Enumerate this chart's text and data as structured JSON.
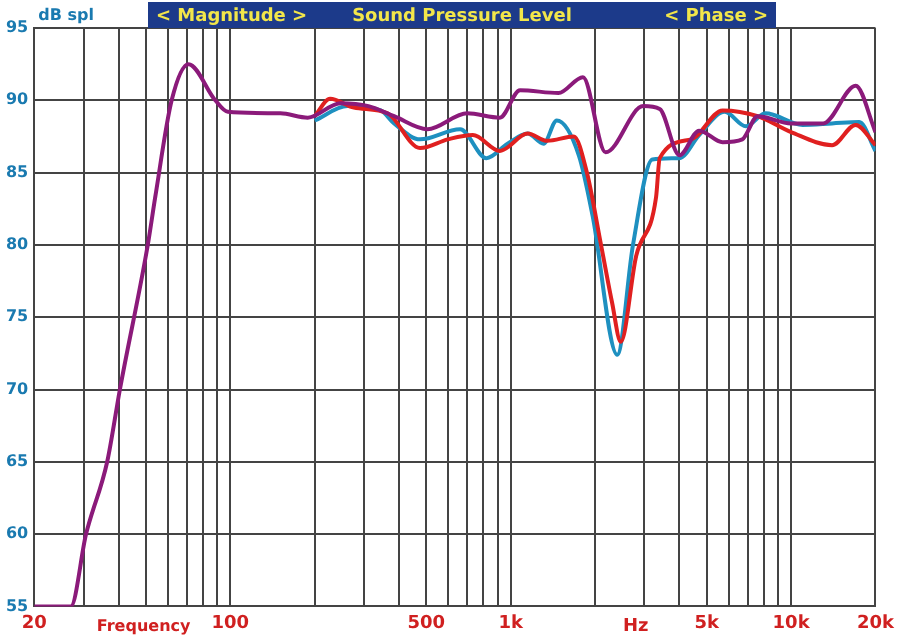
{
  "chart_data": {
    "type": "line",
    "title": "Sound Pressure Level",
    "ylabel": "dB spl",
    "xlabel": "Frequency",
    "annotations": [
      "< Magnitude >",
      "< Phase >",
      "Hz"
    ],
    "log": "x",
    "xlim": [
      20,
      20000
    ],
    "ylim": [
      55,
      95
    ],
    "xticks": [
      20,
      {
        "value": 30,
        "label": null
      },
      {
        "value": 40,
        "label": null
      },
      {
        "value": 50,
        "label": null
      },
      {
        "value": 60,
        "label": null
      },
      {
        "value": 70,
        "label": null
      },
      {
        "value": 80,
        "label": null
      },
      {
        "value": 90,
        "label": null
      },
      100,
      {
        "value": 200,
        "label": null
      },
      {
        "value": 300,
        "label": null
      },
      {
        "value": 400,
        "label": null
      },
      500,
      {
        "value": 600,
        "label": null
      },
      {
        "value": 700,
        "label": null
      },
      {
        "value": 800,
        "label": null
      },
      {
        "value": 900,
        "label": null
      },
      {
        "value": 1000,
        "label": "1k"
      },
      {
        "value": 2000,
        "label": null
      },
      {
        "value": 3000,
        "label": null
      },
      {
        "value": 4000,
        "label": null
      },
      {
        "value": 5000,
        "label": "5k"
      },
      {
        "value": 6000,
        "label": null
      },
      {
        "value": 7000,
        "label": null
      },
      {
        "value": 8000,
        "label": null
      },
      {
        "value": 9000,
        "label": null
      },
      {
        "value": 10000,
        "label": "10k"
      },
      {
        "value": 20000,
        "label": "20k"
      }
    ],
    "yticks": [
      55,
      60,
      65,
      70,
      75,
      80,
      85,
      90,
      95
    ],
    "grid": true,
    "legend": false,
    "marker": "none",
    "line_style": "solid",
    "series": [
      {
        "color": "#8b1a7a",
        "x": [
          20,
          27,
          30.6,
          36.4,
          40.4,
          50.8,
          54,
          61.8,
          71,
          88.4,
          98,
          151,
          189,
          247,
          311,
          384,
          505,
          700,
          915,
          1080,
          1480,
          1810,
          2180,
          2970,
          3400,
          4000,
          4700,
          5700,
          6700,
          7600,
          10000,
          13000,
          17000,
          20000
        ],
        "values": [
          55,
          55,
          60,
          65,
          70,
          80,
          83.3,
          90,
          92.5,
          90,
          89.2,
          89.1,
          88.8,
          89.8,
          89.6,
          88.9,
          88,
          89.1,
          88.8,
          90.7,
          90.5,
          91.6,
          86.4,
          89.6,
          89.4,
          86.2,
          87.9,
          87.1,
          87.3,
          88.9,
          88.4,
          88.4,
          91,
          87.8
        ]
      },
      {
        "color": "#e02020",
        "x": [
          200,
          227,
          276,
          364,
          475,
          597,
          733,
          915,
          1150,
          1350,
          1680,
          1870,
          2100,
          2300,
          2470,
          2800,
          3300,
          3400,
          4400,
          5700,
          7600,
          10000,
          14000,
          17000,
          20000
        ],
        "values": [
          88.9,
          90.1,
          89.5,
          89.1,
          86.7,
          87.3,
          87.6,
          86.5,
          87.7,
          87.2,
          87.5,
          85,
          80,
          76,
          73.3,
          79.2,
          83.3,
          86,
          87.3,
          89.3,
          88.9,
          87.8,
          86.9,
          88.3,
          86.9
        ]
      },
      {
        "color": "#1e90c0",
        "x": [
          200,
          262,
          344,
          384,
          475,
          660,
          820,
          975,
          1150,
          1310,
          1460,
          1750,
          1960,
          2400,
          2730,
          3200,
          4000,
          4700,
          5800,
          6900,
          8100,
          11000,
          14000,
          17500,
          20000
        ],
        "values": [
          88.6,
          89.6,
          89.3,
          88.4,
          87.3,
          88,
          86,
          87,
          87.7,
          87,
          88.6,
          86.2,
          82,
          72.4,
          80,
          85.9,
          86,
          87.6,
          89.2,
          88.2,
          89.1,
          88.3,
          88.4,
          88.5,
          86.5
        ]
      }
    ]
  }
}
